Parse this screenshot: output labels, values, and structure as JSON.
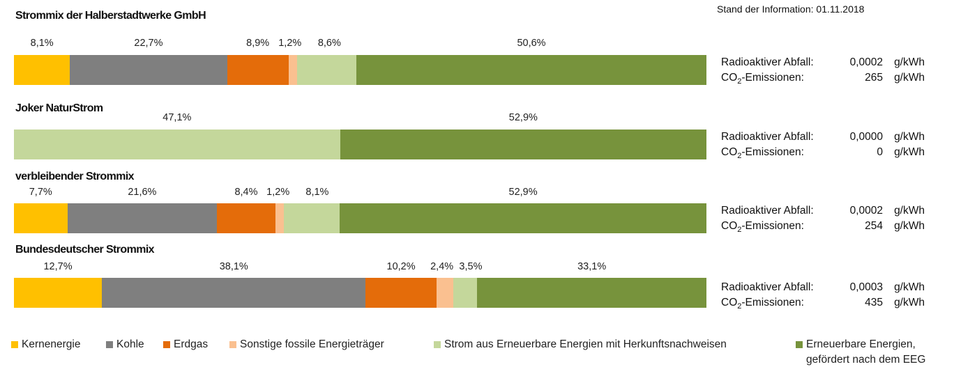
{
  "header": {
    "stand": "Stand der Information: 01.11.2018"
  },
  "colors": {
    "kern": "#ffc000",
    "kohle": "#7f7f7f",
    "erdgas": "#e46c0a",
    "sonstige": "#fac090",
    "herkunft": "#c4d79b",
    "eeg": "#77933c"
  },
  "chart_data": {
    "type": "bar",
    "orientation": "horizontal-stacked-100",
    "legend_position": "bottom",
    "legend": [
      {
        "key": "kern",
        "label": "Kernenergie"
      },
      {
        "key": "kohle",
        "label": "Kohle"
      },
      {
        "key": "erdgas",
        "label": "Erdgas"
      },
      {
        "key": "sonstige",
        "label": "Sonstige fossile Energieträger"
      },
      {
        "key": "herkunft",
        "label": "Strom aus Erneuerbare Energien mit Herkunftsnachweisen"
      },
      {
        "key": "eeg",
        "label": "Erneuerbare Energien,\ngefördert nach dem EEG"
      }
    ],
    "mixes": [
      {
        "title": "Strommix der Halberstadtwerke GmbH",
        "segments": [
          {
            "key": "kern",
            "value": 8.1,
            "label": "8,1%"
          },
          {
            "key": "kohle",
            "value": 22.7,
            "label": "22,7%"
          },
          {
            "key": "erdgas",
            "value": 8.9,
            "label": "8,9%"
          },
          {
            "key": "sonstige",
            "value": 1.2,
            "label": "1,2%"
          },
          {
            "key": "herkunft",
            "value": 8.6,
            "label": "8,6%"
          },
          {
            "key": "eeg",
            "value": 50.6,
            "label": "50,6%"
          }
        ],
        "radio_label": "Radioaktiver Abfall:",
        "radio_value": "0,0002",
        "radio_unit": "g/kWh",
        "co2_prefix": "CO",
        "co2_sub": "2",
        "co2_suffix": "-Emissionen:",
        "co2_value": "265",
        "co2_unit": "g/kWh"
      },
      {
        "title": "Joker NaturStrom",
        "segments": [
          {
            "key": "herkunft",
            "value": 47.1,
            "label": "47,1%"
          },
          {
            "key": "eeg",
            "value": 52.9,
            "label": "52,9%"
          }
        ],
        "radio_label": "Radioaktiver Abfall:",
        "radio_value": "0,0000",
        "radio_unit": "g/kWh",
        "co2_prefix": "CO",
        "co2_sub": "2",
        "co2_suffix": "-Emissionen:",
        "co2_value": "0",
        "co2_unit": "g/kWh"
      },
      {
        "title": "verbleibender Strommix",
        "segments": [
          {
            "key": "kern",
            "value": 7.7,
            "label": "7,7%"
          },
          {
            "key": "kohle",
            "value": 21.6,
            "label": "21,6%"
          },
          {
            "key": "erdgas",
            "value": 8.4,
            "label": "8,4%"
          },
          {
            "key": "sonstige",
            "value": 1.2,
            "label": "1,2%"
          },
          {
            "key": "herkunft",
            "value": 8.1,
            "label": "8,1%"
          },
          {
            "key": "eeg",
            "value": 52.9,
            "label": "52,9%"
          }
        ],
        "radio_label": "Radioaktiver Abfall:",
        "radio_value": "0,0002",
        "radio_unit": "g/kWh",
        "co2_prefix": "CO",
        "co2_sub": "2",
        "co2_suffix": "-Emissionen:",
        "co2_value": "254",
        "co2_unit": "g/kWh"
      },
      {
        "title": "Bundesdeutscher Strommix",
        "segments": [
          {
            "key": "kern",
            "value": 12.7,
            "label": "12,7%"
          },
          {
            "key": "kohle",
            "value": 38.1,
            "label": "38,1%"
          },
          {
            "key": "erdgas",
            "value": 10.2,
            "label": "10,2%"
          },
          {
            "key": "sonstige",
            "value": 2.4,
            "label": "2,4%"
          },
          {
            "key": "herkunft",
            "value": 3.5,
            "label": "3,5%"
          },
          {
            "key": "eeg",
            "value": 33.1,
            "label": "33,1%"
          }
        ],
        "radio_label": "Radioaktiver Abfall:",
        "radio_value": "0,0003",
        "radio_unit": "g/kWh",
        "co2_prefix": "CO",
        "co2_sub": "2",
        "co2_suffix": "-Emissionen:",
        "co2_value": "435",
        "co2_unit": "g/kWh"
      }
    ]
  }
}
